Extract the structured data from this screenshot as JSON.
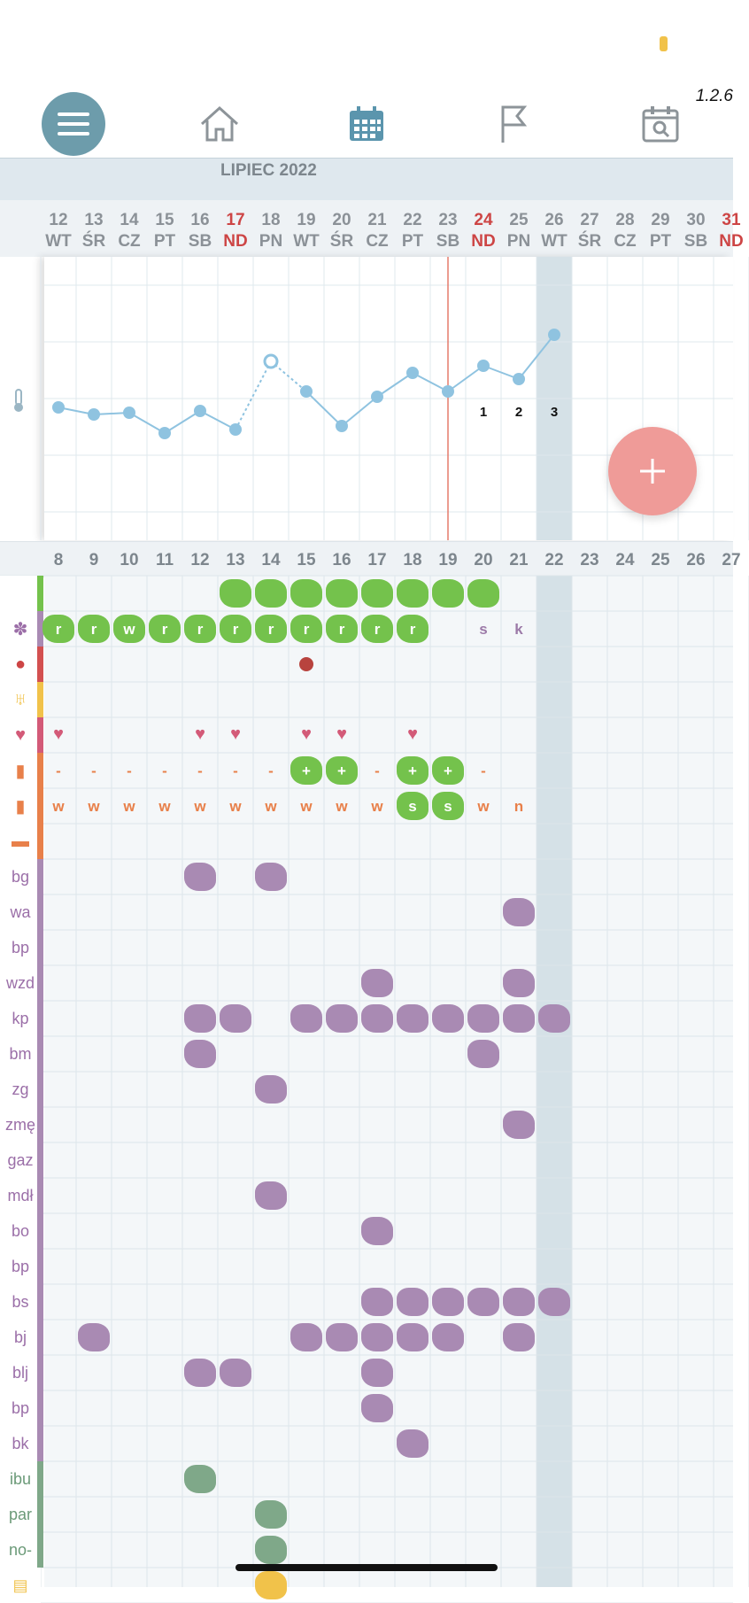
{
  "version": "1.2.6",
  "nav": {
    "items": [
      "menu-icon",
      "home-icon",
      "calendar-icon",
      "flag-icon",
      "calendar-search-icon"
    ]
  },
  "month": "LIPIEC 2022",
  "day_numbers": [
    "12",
    "13",
    "14",
    "15",
    "16",
    "17",
    "18",
    "19",
    "20",
    "21",
    "22",
    "23",
    "24",
    "25",
    "26",
    "27",
    "28",
    "29",
    "30",
    "31"
  ],
  "day_names": [
    "WT",
    "ŚR",
    "CZ",
    "PT",
    "SB",
    "ND",
    "PN",
    "WT",
    "ŚR",
    "CZ",
    "PT",
    "SB",
    "ND",
    "PN",
    "WT",
    "ŚR",
    "CZ",
    "PT",
    "SB",
    "ND"
  ],
  "cycle_days": [
    "8",
    "9",
    "10",
    "11",
    "12",
    "13",
    "14",
    "15",
    "16",
    "17",
    "18",
    "19",
    "20",
    "21",
    "22",
    "23",
    "24",
    "25",
    "26",
    "27"
  ],
  "temperature_labels": [
    "1",
    "2",
    "3"
  ],
  "row_labels": [
    "bg",
    "wa",
    "bp",
    "wzd",
    "kp",
    "bm",
    "zg",
    "zmę",
    "gaz",
    "mdł",
    "bo",
    "bp",
    "bs",
    "bj",
    "blj",
    "bp",
    "bk",
    "ibu",
    "par",
    "no-"
  ],
  "mucus_marks": [
    "r",
    "r",
    "w",
    "r",
    "r",
    "r",
    "r",
    "r",
    "r",
    "r",
    "r",
    "",
    "s",
    "k"
  ],
  "test1_marks": [
    "-",
    "-",
    "-",
    "-",
    "-",
    "-",
    "-",
    "+",
    "+",
    "-",
    "+",
    "+",
    "-"
  ],
  "test2_marks": [
    "w",
    "w",
    "w",
    "w",
    "w",
    "w",
    "w",
    "w",
    "w",
    "w",
    "s",
    "s",
    "w",
    "n"
  ],
  "colors": {
    "accent": "#6d9cab",
    "green": "#74c24c",
    "purple": "#a98ab3",
    "fab": "#ef9b98",
    "sunday": "#cd4545"
  }
}
